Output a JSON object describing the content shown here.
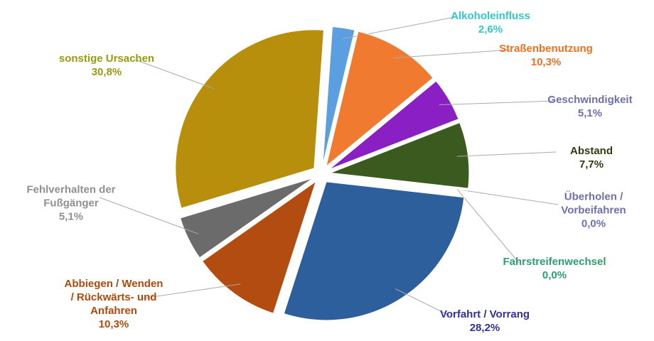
{
  "chart_data": {
    "type": "pie",
    "categories": [
      "Alkoholeinfluss",
      "Straßenbenutzung",
      "Geschwindigkeit",
      "Abstand",
      "Überholen /\nVorbeifahren",
      "Fahrstreifenwechsel",
      "Vorfahrt / Vorrang",
      "Abbiegen / Wenden\n/ Rückwärts- und\nAnfahren",
      "Fehlverhalten der\nFußgänger",
      "sonstige Ursachen"
    ],
    "values": [
      2.6,
      10.3,
      5.1,
      7.7,
      0.0,
      0.0,
      28.2,
      10.3,
      5.1,
      30.8
    ],
    "value_labels": [
      "2,6%",
      "10,3%",
      "5,1%",
      "7,7%",
      "0,0%",
      "0,0%",
      "28,2%",
      "10,3%",
      "5,1%",
      "30,8%"
    ],
    "colors": [
      "#5b9fe0",
      "#f07b30",
      "#8a1fc4",
      "#3b5a20",
      "#7b78b8",
      "#2e9e6e",
      "#2c5f9b",
      "#b24c10",
      "#6b6b6b",
      "#b88f0c"
    ],
    "label_colors": [
      "#33c8c8",
      "#f07020",
      "#6f6fb0",
      "#2f3a10",
      "#6f6fb0",
      "#2e9e6e",
      "#3030a0",
      "#b04a0a",
      "#909090",
      "#9a9a10"
    ]
  }
}
